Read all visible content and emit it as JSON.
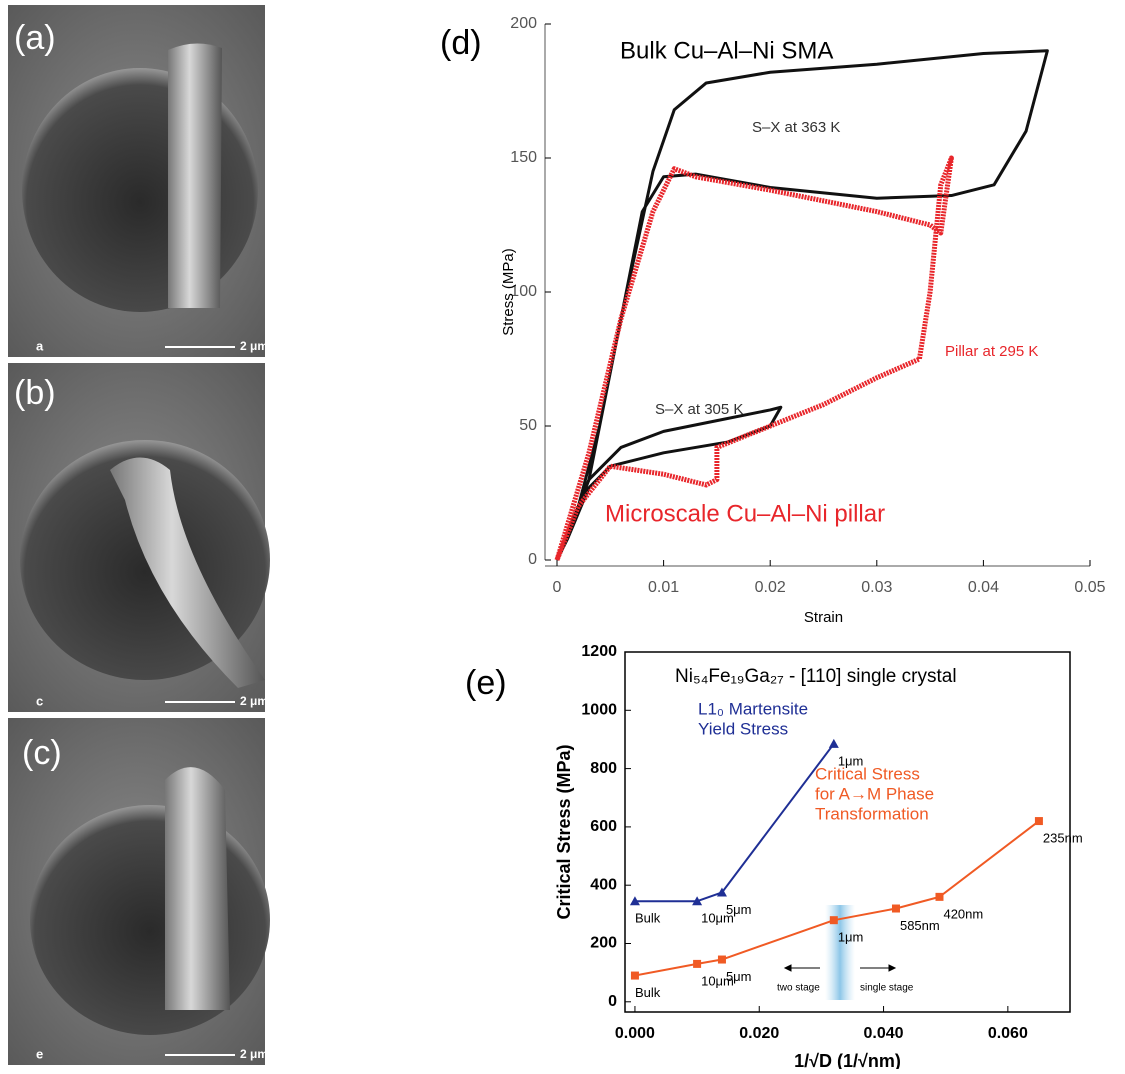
{
  "panels": {
    "labels": [
      "(a)",
      "(b)",
      "(c)",
      "(d)",
      "(e)"
    ],
    "sem": [
      {
        "letter": "a",
        "scale": "2 μm"
      },
      {
        "letter": "c",
        "scale": "2 μm"
      },
      {
        "letter": "e",
        "scale": "2 μm"
      }
    ]
  },
  "chart_data": [
    {
      "type": "line",
      "xlabel": "Strain",
      "ylabel": "Stress (MPa)",
      "xlim": [
        0,
        0.05
      ],
      "ylim": [
        0,
        200
      ],
      "xticks": [
        0,
        0.01,
        0.02,
        0.03,
        0.04,
        0.05
      ],
      "yticks": [
        0,
        50,
        100,
        150,
        200
      ],
      "annotations": [
        "Bulk Cu–Al–Ni SMA",
        "S–X at 363 K",
        "S–X at 305 K",
        "Pillar at 295 K",
        "Microscale Cu–Al–Ni pillar"
      ],
      "series": [
        {
          "name": "S–X at 363 K",
          "color": "#111111",
          "x": [
            0,
            0.003,
            0.006,
            0.009,
            0.011,
            0.014,
            0.02,
            0.03,
            0.04,
            0.046,
            0.044,
            0.041,
            0.037,
            0.03,
            0.02,
            0.013,
            0.01,
            0.008,
            0.006,
            0.004,
            0.002,
            0
          ],
          "values": [
            0,
            30,
            90,
            145,
            168,
            178,
            182,
            185,
            189,
            190,
            160,
            140,
            136,
            135,
            139,
            144,
            143,
            130,
            90,
            50,
            20,
            0
          ]
        },
        {
          "name": "S–X at 305 K",
          "color": "#111111",
          "x": [
            0,
            0.003,
            0.006,
            0.01,
            0.015,
            0.02,
            0.021,
            0.02,
            0.016,
            0.01,
            0.005,
            0.003,
            0.001,
            0
          ],
          "values": [
            0,
            30,
            42,
            48,
            52,
            56,
            57,
            50,
            44,
            40,
            35,
            27,
            8,
            0
          ]
        },
        {
          "name": "Pillar at 295 K",
          "color": "#e8262b",
          "x": [
            0,
            0.003,
            0.006,
            0.009,
            0.011,
            0.013,
            0.02,
            0.025,
            0.03,
            0.035,
            0.036,
            0.037,
            0.036,
            0.035,
            0.034,
            0.03,
            0.025,
            0.02,
            0.015,
            0.015,
            0.014,
            0.01,
            0.005,
            0.002,
            0
          ],
          "values": [
            0,
            40,
            90,
            130,
            146,
            143,
            138,
            134,
            130,
            125,
            122,
            150,
            140,
            100,
            75,
            68,
            58,
            50,
            42,
            30,
            28,
            32,
            35,
            20,
            0
          ]
        }
      ]
    },
    {
      "type": "line",
      "title": "Ni₅₄Fe₁₉Ga₂₇ - [110] single crystal",
      "xlabel": "1/√D (1/√nm)",
      "ylabel": "Critical Stress (MPa)",
      "xlim": [
        -0.0016,
        0.07
      ],
      "ylim": [
        -35,
        1200
      ],
      "xticks": [
        {
          "value": 0,
          "label": "0.000"
        },
        {
          "value": 0.02,
          "label": "0.020"
        },
        {
          "value": 0.04,
          "label": "0.040"
        },
        {
          "value": 0.06,
          "label": "0.060"
        }
      ],
      "yticks": [
        0,
        200,
        400,
        600,
        800,
        1000,
        1200
      ],
      "annotations": [
        "two stage",
        "single stage"
      ],
      "series": [
        {
          "name": [
            "L1₀ Martensite",
            "Yield Stress"
          ],
          "color": "#1f2f95",
          "marker": "triangle",
          "x": [
            0,
            0.01,
            0.014,
            0.032
          ],
          "values": [
            345,
            345,
            375,
            885
          ],
          "point_labels": [
            "Bulk",
            "10μm",
            "5μm",
            "1μm"
          ]
        },
        {
          "name": [
            "Critical Stress",
            "for A→M Phase",
            "Transformation"
          ],
          "color": "#f05a24",
          "marker": "square",
          "x": [
            0,
            0.01,
            0.014,
            0.032,
            0.042,
            0.049,
            0.065
          ],
          "values": [
            90,
            130,
            145,
            280,
            320,
            360,
            620
          ],
          "point_labels": [
            "Bulk",
            "10μm",
            "5μm",
            "1μm",
            "585nm",
            "420nm",
            "235nm"
          ]
        }
      ]
    }
  ]
}
